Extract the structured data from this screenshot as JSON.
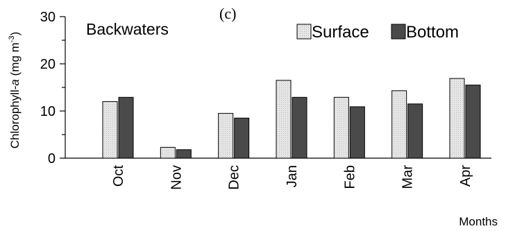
{
  "chart_data": {
    "type": "bar",
    "panel_label": "(c)",
    "subtitle": "Backwaters",
    "ylabel": "Chlorophyll-",
    "ylabel_italic": "a",
    "ylabel_unit": " (mg m",
    "ylabel_sup": "-3",
    "ylabel_close": ")",
    "xlabel": "Months",
    "ylim": [
      0,
      30
    ],
    "yticks": [
      0,
      10,
      20,
      30
    ],
    "grid": false,
    "legend_position": "top-right",
    "categories": [
      "Oct",
      "Nov",
      "Dec",
      "Jan",
      "Feb",
      "Mar",
      "Apr"
    ],
    "series": [
      {
        "name": "Surface",
        "color": "#e2e2e2",
        "values": [
          12.0,
          2.3,
          9.5,
          16.5,
          12.9,
          14.3,
          16.9
        ]
      },
      {
        "name": "Bottom",
        "color": "#4a4a4a",
        "values": [
          12.9,
          1.8,
          8.5,
          12.9,
          10.9,
          11.5,
          15.5
        ]
      }
    ]
  }
}
